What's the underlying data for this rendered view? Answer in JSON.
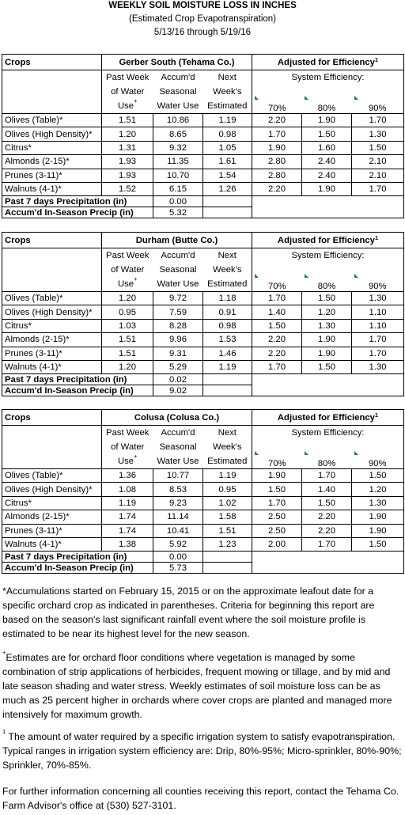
{
  "header": {
    "title": "WEEKLY SOIL MOISTURE LOSS IN INCHES",
    "subtitle": "(Estimated Crop Evapotranspiration)",
    "dates": "5/13/16 through 5/19/16"
  },
  "tables": [
    {
      "crops_label": "Crops",
      "location": "Gerber South (Tehama Co.)",
      "adjusted": "Adjusted for Efficiency",
      "adjusted_sup": "1",
      "system_efficiency": "System Efficiency:",
      "columns": [
        {
          "lines": [
            "Past Week",
            "of Water",
            "Use"
          ],
          "sup": "+"
        },
        {
          "lines": [
            "Accum'd",
            "Seasonal",
            "Water Use"
          ]
        },
        {
          "lines": [
            "Next",
            "Week's",
            "Estimated"
          ]
        }
      ],
      "efficiency_columns": [
        "70%",
        "80%",
        "90%"
      ],
      "rows": [
        [
          "Olives (Table)*",
          "1.51",
          "10.86",
          "1.19",
          "2.20",
          "1.90",
          "1.70"
        ],
        [
          "Olives (High Density)*",
          "1.20",
          "8.65",
          "0.98",
          "1.70",
          "1.50",
          "1.30"
        ],
        [
          "Citrus*",
          "1.31",
          "9.32",
          "1.05",
          "1.90",
          "1.60",
          "1.50"
        ],
        [
          "Almonds (2-15)*",
          "1.93",
          "11.35",
          "1.61",
          "2.80",
          "2.40",
          "2.10"
        ],
        [
          "Prunes (3-11)*",
          "1.93",
          "10.70",
          "1.54",
          "2.80",
          "2.40",
          "2.10"
        ],
        [
          "Walnuts (4-1)*",
          "1.52",
          "6.15",
          "1.26",
          "2.20",
          "1.90",
          "1.70"
        ]
      ],
      "precip_label": "Past 7 days Precipitation (in)",
      "precip": "0.00",
      "accum_label": "Accum'd In-Season Precip (in)",
      "accum": "5.32"
    },
    {
      "crops_label": "Crops",
      "location": "Durham (Butte Co.)",
      "adjusted": "Adjusted for Efficiency",
      "adjusted_sup": "1",
      "system_efficiency": "System Efficiency:",
      "columns": [
        {
          "lines": [
            "Past Week",
            "of Water",
            "Use"
          ],
          "sup": "+"
        },
        {
          "lines": [
            "Accum'd",
            "Seasonal",
            "Water Use"
          ]
        },
        {
          "lines": [
            "Next",
            "Week's",
            "Estimated"
          ]
        }
      ],
      "efficiency_columns": [
        "70%",
        "80%",
        "90%"
      ],
      "rows": [
        [
          "Olives (Table)*",
          "1.20",
          "9.72",
          "1.18",
          "1.70",
          "1.50",
          "1.30"
        ],
        [
          "Olives (High Density)*",
          "0.95",
          "7.59",
          "0.91",
          "1.40",
          "1.20",
          "1.10"
        ],
        [
          "Citrus*",
          "1.03",
          "8.28",
          "0.98",
          "1.50",
          "1.30",
          "1.10"
        ],
        [
          "Almonds (2-15)*",
          "1.51",
          "9.96",
          "1.53",
          "2.20",
          "1.90",
          "1.70"
        ],
        [
          "Prunes (3-11)*",
          "1.51",
          "9.31",
          "1.46",
          "2.20",
          "1.90",
          "1.70"
        ],
        [
          "Walnuts (4-1)*",
          "1.20",
          "5.29",
          "1.19",
          "1.70",
          "1.50",
          "1.30"
        ]
      ],
      "precip_label": "Past 7 days Precipitation (in)",
      "precip": "0.02",
      "accum_label": "Accum'd In-Season Precip (in)",
      "accum": "9.02"
    },
    {
      "crops_label": "Crops",
      "location": "Colusa (Colusa Co.)",
      "adjusted": "Adjusted for Efficiency",
      "adjusted_sup": "1",
      "system_efficiency": "System Efficiency:",
      "columns": [
        {
          "lines": [
            "Past Week",
            "of Water",
            "Use"
          ],
          "sup": "+"
        },
        {
          "lines": [
            "Accum'd",
            "Seasonal",
            "Water Use"
          ]
        },
        {
          "lines": [
            "Next",
            "Week's",
            "Estimated"
          ]
        }
      ],
      "efficiency_columns": [
        "70%",
        "80%",
        "90%"
      ],
      "rows": [
        [
          "Olives (Table)*",
          "1.36",
          "10.77",
          "1.19",
          "1.90",
          "1.70",
          "1.50"
        ],
        [
          "Olives (High Density)*",
          "1.08",
          "8.53",
          "0.95",
          "1.50",
          "1.40",
          "1.20"
        ],
        [
          "Citrus*",
          "1.19",
          "9.23",
          "1.02",
          "1.70",
          "1.50",
          "1.30"
        ],
        [
          "Almonds (2-15)*",
          "1.74",
          "11.14",
          "1.58",
          "2.50",
          "2.20",
          "1.90"
        ],
        [
          "Prunes (3-11)*",
          "1.74",
          "10.41",
          "1.51",
          "2.50",
          "2.20",
          "1.90"
        ],
        [
          "Walnuts (4-1)*",
          "1.38",
          "5.92",
          "1.23",
          "2.00",
          "1.70",
          "1.50"
        ]
      ],
      "precip_label": "Past 7 days Precipitation (in)",
      "precip": "0.00",
      "accum_label": "Accum'd In-Season Precip (in)",
      "accum": "5.73"
    }
  ],
  "footnotes": [
    {
      "text": "*Accumulations started on February 15, 2015 or on the approximate leafout date for a specific orchard crop as indicated in parentheses.  Criteria for beginning this report are based on the season's last significant rainfall event where the soil moisture profile is estimated to be near its highest level for the new season."
    },
    {
      "marker": "+",
      "text": "Estimates are for orchard floor conditions where vegetation is managed by some combination of strip applications of herbicides, frequent mowing or tillage, and by mid and late season shading and water stress.  Weekly estimates of soil moisture loss can be as much as 25 percent higher in orchards where cover crops are planted and managed more intensively for maximum growth."
    },
    {
      "marker": "1",
      "text": " The amount of water required by a specific irrigation system to satisfy evapotranspiration. Typical ranges in irrigation system efficiency are: Drip, 80%-95%; Micro-sprinkler, 80%-90%; Sprinkler, 70%-85%."
    },
    {
      "text": "For further information concerning all counties receiving this report, contact the Tehama Co. Farm Advisor's office at (530) 527-3101."
    }
  ]
}
